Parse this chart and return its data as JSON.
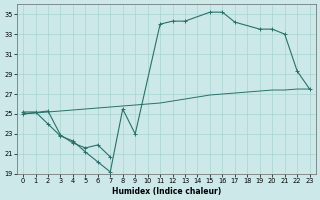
{
  "xlabel": "Humidex (Indice chaleur)",
  "xlim": [
    -0.5,
    23.5
  ],
  "ylim": [
    19,
    36
  ],
  "yticks": [
    19,
    21,
    23,
    25,
    27,
    29,
    31,
    33,
    35
  ],
  "xticks": [
    0,
    1,
    2,
    3,
    4,
    5,
    6,
    7,
    8,
    9,
    10,
    11,
    12,
    13,
    14,
    15,
    16,
    17,
    18,
    19,
    20,
    21,
    22,
    23
  ],
  "bg_color": "#cce8e8",
  "line_color": "#2a706a",
  "grid_color": "#a8d4d0",
  "series": [
    {
      "x": [
        0,
        1,
        2,
        3,
        4,
        5,
        6,
        7,
        8,
        9,
        11,
        12,
        13,
        15,
        16,
        17,
        19,
        20,
        21,
        22,
        23
      ],
      "y": [
        25.2,
        25.2,
        24.0,
        22.8,
        22.3,
        21.2,
        20.2,
        19.2,
        25.5,
        23.0,
        34.0,
        34.3,
        34.3,
        35.2,
        35.2,
        34.2,
        33.5,
        33.5,
        33.0,
        29.3,
        27.5
      ]
    },
    {
      "x": [
        0,
        2,
        3,
        4,
        5,
        6,
        7
      ],
      "y": [
        25.0,
        25.3,
        22.9,
        22.1,
        21.6,
        21.9,
        20.7
      ]
    },
    {
      "x": [
        0,
        1,
        2,
        3,
        4,
        5,
        6,
        7,
        8,
        9,
        10,
        11,
        12,
        13,
        14,
        15,
        16,
        17,
        18,
        19,
        20,
        21,
        22,
        23
      ],
      "y": [
        25.0,
        25.1,
        25.2,
        25.3,
        25.4,
        25.5,
        25.6,
        25.7,
        25.8,
        25.9,
        26.0,
        26.1,
        26.3,
        26.5,
        26.7,
        26.9,
        27.0,
        27.1,
        27.2,
        27.3,
        27.4,
        27.4,
        27.5,
        27.5
      ]
    }
  ]
}
